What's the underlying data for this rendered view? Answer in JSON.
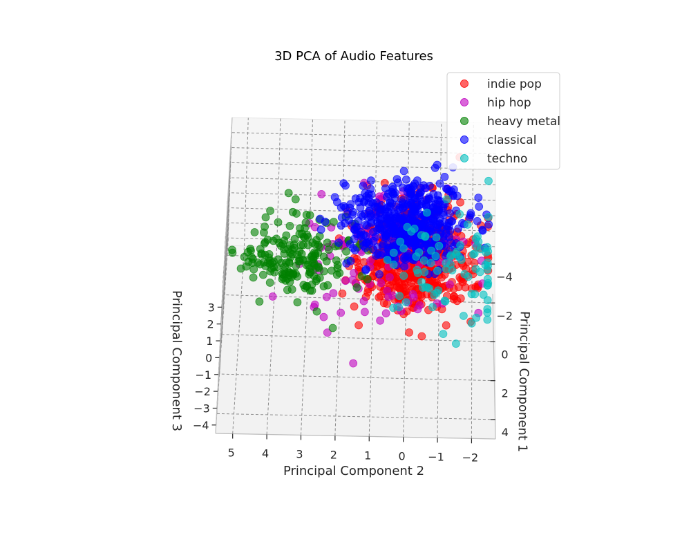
{
  "chart_data": {
    "type": "scatter",
    "title": "3D PCA of Audio Features",
    "xlabel": "Principal Component 1",
    "ylabel": "Principal Component 2",
    "zlabel": "Principal Component 3",
    "x_ticks": [
      "4",
      "2",
      "0",
      "−2",
      "−4"
    ],
    "y_ticks": [
      "5",
      "4",
      "3",
      "2",
      "1",
      "0",
      "−1",
      "−2"
    ],
    "z_ticks": [
      "3",
      "2",
      "1",
      "0",
      "−1",
      "−2",
      "−3",
      "−4"
    ],
    "xlim": [
      -4.5,
      5
    ],
    "ylim": [
      -2.7,
      5.5
    ],
    "zlim": [
      -4.5,
      4
    ],
    "grid": true,
    "legend_position": "top-right",
    "series": [
      {
        "name": "indie pop",
        "color": "#ff0000",
        "count": 520,
        "center": [
          1.0,
          -0.2,
          1.7
        ],
        "spread": [
          1.3,
          0.9,
          0.9
        ]
      },
      {
        "name": "hip hop",
        "color": "#bf00bf",
        "count": 110,
        "center": [
          0.8,
          0.8,
          1.4
        ],
        "spread": [
          1.6,
          1.4,
          1.0
        ]
      },
      {
        "name": "heavy metal",
        "color": "#008000",
        "count": 190,
        "center": [
          0.5,
          3.3,
          1.0
        ],
        "spread": [
          0.9,
          0.9,
          0.6
        ]
      },
      {
        "name": "classical",
        "color": "#0000ff",
        "count": 520,
        "center": [
          -2.0,
          0.0,
          0.3
        ],
        "spread": [
          1.0,
          0.9,
          0.6
        ]
      },
      {
        "name": "techno",
        "color": "#00bfbf",
        "count": 90,
        "center": [
          1.4,
          -1.5,
          1.7
        ],
        "spread": [
          1.4,
          0.9,
          0.8
        ]
      }
    ]
  }
}
